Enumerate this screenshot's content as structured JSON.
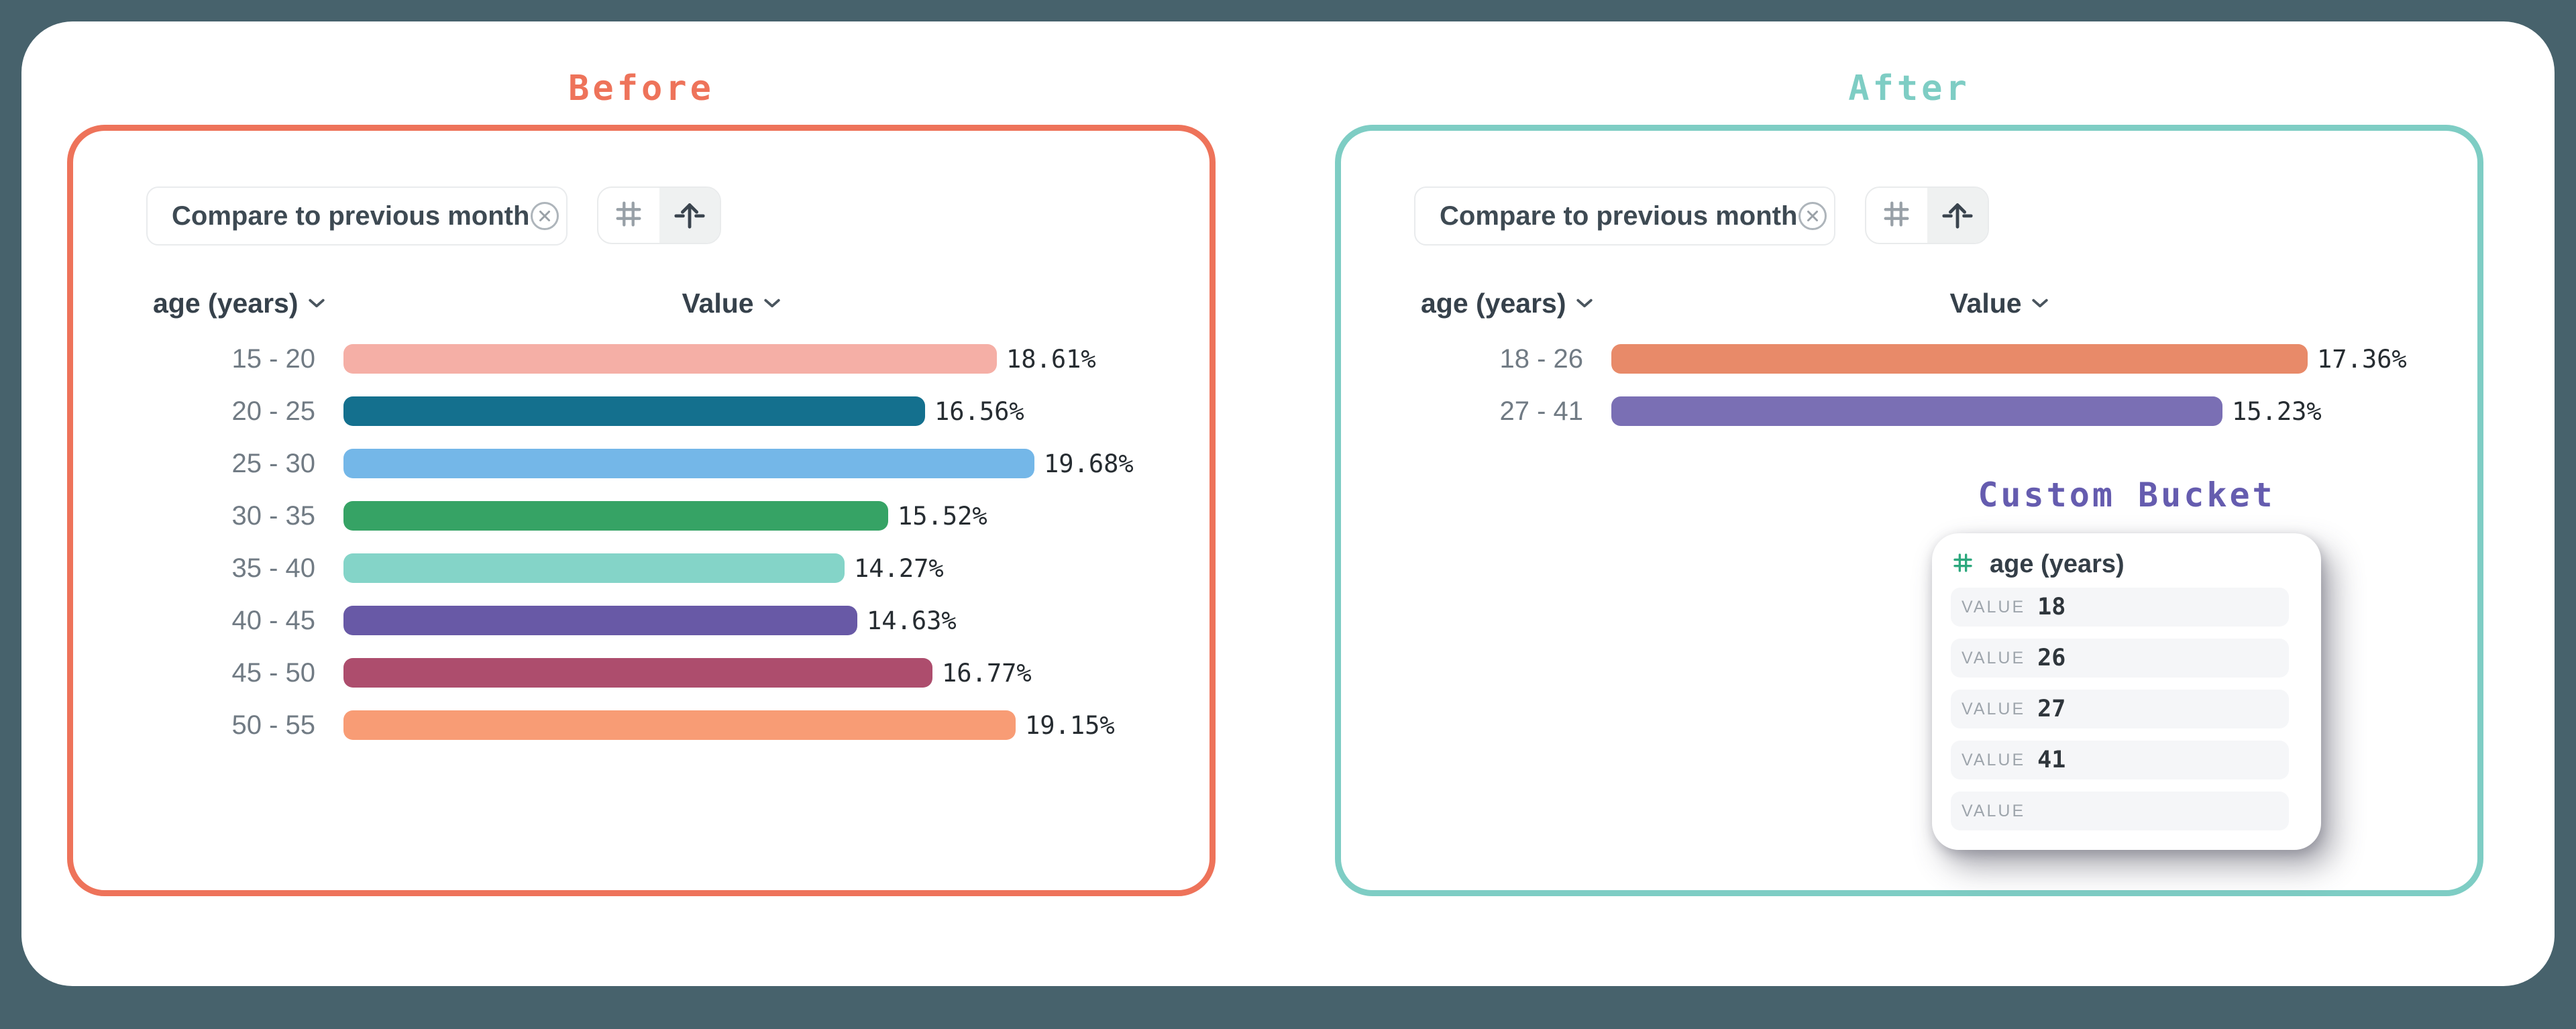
{
  "colors": {
    "page_bg": "#47626C",
    "card_bg": "#FFFFFF",
    "before_accent": "#EE735A",
    "after_accent": "#7ECDC4",
    "custom_bucket_accent": "#655CAF",
    "popup_hash_green": "#2CA87D",
    "toolbar_icon_gray": "#98A0A7",
    "toolbar_icon_dark": "#3A444E"
  },
  "before_panel": {
    "title": "Before",
    "chip_label": "Compare to previous month",
    "dimension_header": "age (years)",
    "value_header": "Value"
  },
  "after_panel": {
    "title": "After",
    "chip_label": "Compare to previous month",
    "dimension_header": "age (years)",
    "value_header": "Value"
  },
  "custom_bucket": {
    "title": "Custom Bucket",
    "field_label": "age (years)",
    "value_rows": [
      {
        "label": "VALUE",
        "value": "18"
      },
      {
        "label": "VALUE",
        "value": "26"
      },
      {
        "label": "VALUE",
        "value": "27"
      },
      {
        "label": "VALUE",
        "value": "41"
      },
      {
        "label": "VALUE",
        "value": ""
      }
    ]
  },
  "chart_data": [
    {
      "id": "before",
      "type": "bar",
      "orientation": "horizontal",
      "title": "Before",
      "xlabel": "Value",
      "ylabel": "age (years)",
      "unit": "%",
      "categories": [
        "15 - 20",
        "20 - 25",
        "25 - 30",
        "30 - 35",
        "35 - 40",
        "40 - 45",
        "45 - 50",
        "50 - 55"
      ],
      "values": [
        18.61,
        16.56,
        19.68,
        15.52,
        14.27,
        14.63,
        16.77,
        19.15
      ],
      "value_labels": [
        "18.61%",
        "16.56%",
        "19.68%",
        "15.52%",
        "14.27%",
        "14.63%",
        "16.77%",
        "19.15%"
      ],
      "bar_colors": [
        "#F5AFA6",
        "#14708E",
        "#74B7E8",
        "#36A365",
        "#84D4C8",
        "#6859A6",
        "#AD4D6D",
        "#F89C75"
      ]
    },
    {
      "id": "after",
      "type": "bar",
      "orientation": "horizontal",
      "title": "After",
      "xlabel": "Value",
      "ylabel": "age (years)",
      "unit": "%",
      "categories": [
        "18 - 26",
        "27 - 41"
      ],
      "values": [
        17.36,
        15.23
      ],
      "value_labels": [
        "17.36%",
        "15.23%"
      ],
      "bar_colors": [
        "#E88A69",
        "#7A6FB4"
      ]
    }
  ]
}
